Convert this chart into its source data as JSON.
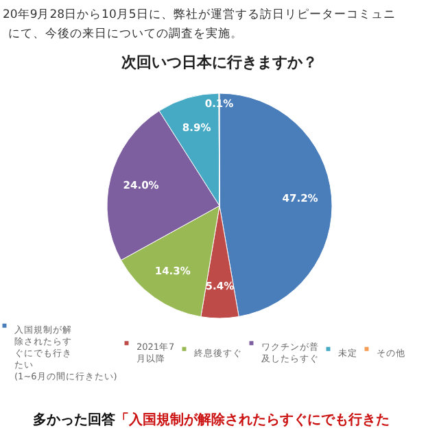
{
  "chart_data": {
    "type": "pie",
    "title": "次回いつ日本に行きますか？",
    "annotations": [
      "20年9月28日から10月5日に、弊社が運営する訪日リピーターコミュニ",
      "にて、今後の来日についての調査を実施。",
      "多かった回答",
      "「入国規制が解除されたらすぐにでも行きた"
    ],
    "categories": [
      "入国規制が解除されたらすぐにでも行きたい(1~6月の間に行きたい)",
      "2021年7月以降",
      "終息後すぐ",
      "ワクチンが普及したらすぐ",
      "未定",
      "その他"
    ],
    "values": [
      47.2,
      5.4,
      14.3,
      24.0,
      8.9,
      0.1
    ],
    "colors": [
      "#4a7ebb",
      "#be4b48",
      "#98b954",
      "#7d5fa0",
      "#46aac5",
      "#f59d56"
    ],
    "value_labels": [
      "47.2%",
      "5.4%",
      "14.3%",
      "24.0%",
      "8.9%",
      "0.1%"
    ],
    "legend": "bottom"
  }
}
